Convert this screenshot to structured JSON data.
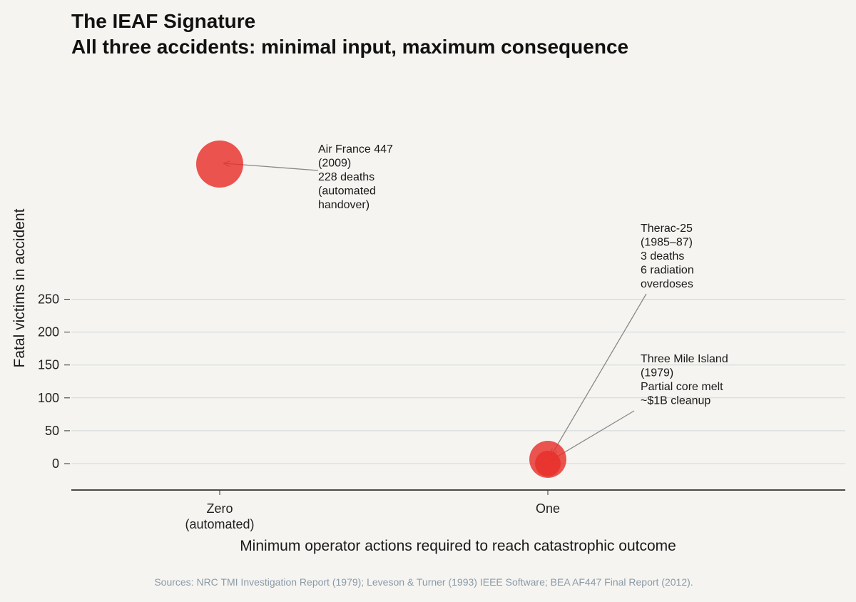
{
  "chart_data": {
    "type": "scatter",
    "title": "The IEAF Signature",
    "subtitle": "All three accidents: minimal input, maximum consequence",
    "xlabel": "Minimum operator actions required to reach catastrophic outcome",
    "ylabel": "Fatal victims in accident",
    "x_categories": [
      [
        "Zero",
        "(automated)"
      ],
      [
        "One"
      ]
    ],
    "yticks": [
      0,
      50,
      100,
      150,
      200,
      250
    ],
    "ylim": [
      -20,
      260
    ],
    "grid": "horizontal",
    "marker_color": "#e8302a",
    "annotation_color": "#888888",
    "points": [
      {
        "x_index": 0,
        "y": 228,
        "annotation": [
          "Air France 447",
          "(2009)",
          "228 deaths",
          "(automated",
          "handover)"
        ]
      },
      {
        "x_index": 1,
        "y": 3,
        "annotation": [
          "Therac-25",
          "(1985–87)",
          "3 deaths",
          "6 radiation",
          "overdoses"
        ]
      },
      {
        "x_index": 1,
        "y": 0,
        "annotation": [
          "Three Mile Island",
          "(1979)",
          "Partial core melt",
          "~$1B cleanup"
        ]
      }
    ]
  },
  "source_note": "Sources: NRC TMI Investigation Report (1979); Leveson & Turner (1993) IEEE Software; BEA AF447 Final Report (2012)."
}
